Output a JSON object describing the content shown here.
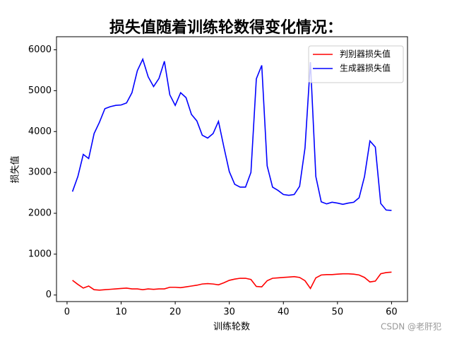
{
  "chart_data": {
    "type": "line",
    "title": "损失值随着训练轮数得变化情况：",
    "x_label": "训练轮数",
    "y_label": "损失值",
    "annotation": "CSDN @老肝犯",
    "x": [
      1,
      2,
      3,
      4,
      5,
      6,
      7,
      8,
      9,
      10,
      11,
      12,
      13,
      14,
      15,
      16,
      17,
      18,
      19,
      20,
      21,
      22,
      23,
      24,
      25,
      26,
      27,
      28,
      29,
      30,
      31,
      32,
      33,
      34,
      35,
      36,
      37,
      38,
      39,
      40,
      41,
      42,
      43,
      44,
      45,
      46,
      47,
      48,
      49,
      50,
      51,
      52,
      53,
      54,
      55,
      56,
      57,
      58,
      59,
      60
    ],
    "series": [
      {
        "name": "判别器损失值",
        "color": "#ff0000",
        "values": [
          360,
          260,
          170,
          220,
          130,
          120,
          130,
          140,
          150,
          160,
          170,
          150,
          150,
          130,
          150,
          140,
          150,
          150,
          190,
          190,
          180,
          200,
          220,
          240,
          270,
          280,
          270,
          250,
          300,
          360,
          390,
          410,
          410,
          380,
          210,
          200,
          350,
          410,
          420,
          430,
          440,
          450,
          430,
          350,
          160,
          420,
          490,
          500,
          500,
          510,
          520,
          520,
          510,
          490,
          430,
          320,
          340,
          520,
          550,
          560
        ]
      },
      {
        "name": "生成器损失值",
        "color": "#0000ff",
        "values": [
          2530,
          2900,
          3440,
          3340,
          3950,
          4230,
          4560,
          4610,
          4640,
          4650,
          4700,
          4950,
          5490,
          5770,
          5340,
          5100,
          5300,
          5720,
          4900,
          4640,
          4950,
          4830,
          4420,
          4260,
          3910,
          3840,
          3950,
          4250,
          3620,
          3020,
          2710,
          2640,
          2640,
          3000,
          5290,
          5620,
          3160,
          2640,
          2560,
          2460,
          2440,
          2460,
          2660,
          3600,
          5700,
          2900,
          2280,
          2230,
          2270,
          2250,
          2220,
          2250,
          2270,
          2380,
          2900,
          3770,
          3620,
          2240,
          2080,
          2070
        ]
      }
    ],
    "xlim": [
      -1.95,
      62.95
    ],
    "ylim": [
      -160,
      6320
    ],
    "xticks": [
      0,
      10,
      20,
      30,
      40,
      50,
      60
    ],
    "yticks": [
      0,
      1000,
      2000,
      3000,
      4000,
      5000,
      6000
    ],
    "legend": "upper right",
    "grid": false
  }
}
